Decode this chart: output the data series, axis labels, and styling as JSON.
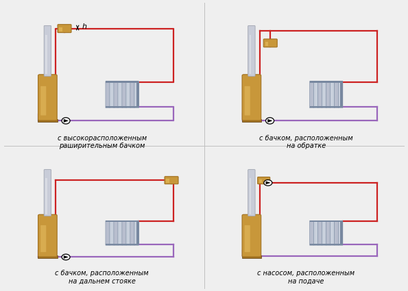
{
  "bg_color": "#efefef",
  "red_color": "#cc2222",
  "purple_color": "#9966bb",
  "boiler_gold": "#c8973a",
  "boiler_gold2": "#e0b55a",
  "boiler_dark": "#a07020",
  "pipe_gray": "#a0a4b0",
  "pipe_gray2": "#c8ccd8",
  "rad_color": "#b8bece",
  "rad_edge": "#7888a0",
  "tank_color": "#c8973a",
  "tank_edge": "#a07020",
  "labels": [
    "с высокорасположенным\nраширительным бачком",
    "с бачком, расположенным\nна обратке",
    "с бачком, расположенным\nна дальнем стояке",
    "с насосом, расположенным\nна подаче"
  ]
}
